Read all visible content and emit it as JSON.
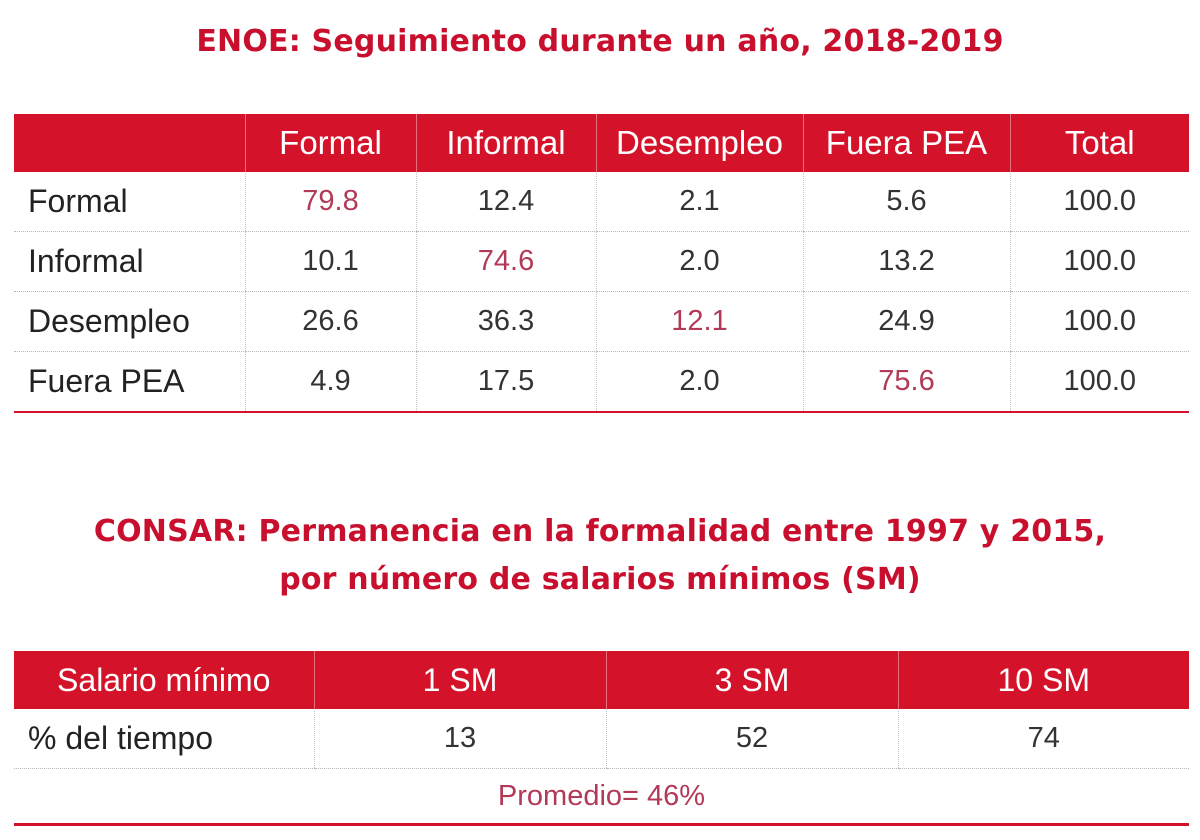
{
  "enoe": {
    "title": "ENOE: Seguimiento durante un año, 2018-2019",
    "headers": [
      "",
      "Formal",
      "Informal",
      "Desempleo",
      "Fuera PEA",
      "Total"
    ],
    "rows": [
      {
        "label": "Formal",
        "values": [
          "79.8",
          "12.4",
          "2.1",
          "5.6",
          "100.0"
        ]
      },
      {
        "label": "Informal",
        "values": [
          "10.1",
          "74.6",
          "2.0",
          "13.2",
          "100.0"
        ]
      },
      {
        "label": "Desempleo",
        "values": [
          "26.6",
          "36.3",
          "12.1",
          "24.9",
          "100.0"
        ]
      },
      {
        "label": "Fuera PEA",
        "values": [
          "4.9",
          "17.5",
          "2.0",
          "75.6",
          "100.0"
        ]
      }
    ]
  },
  "consar": {
    "title_line1": "CONSAR: Permanencia en la formalidad entre 1997 y 2015,",
    "title_line2": "por número de salarios mínimos (SM)",
    "headers": [
      "Salario mínimo",
      "1 SM",
      "3 SM",
      "10 SM"
    ],
    "row": {
      "label": "% del tiempo",
      "values": [
        "13",
        "52",
        "74"
      ]
    },
    "average": "Promedio= 46%"
  },
  "colors": {
    "accent": "#d4132a",
    "title": "#c8102e",
    "highlight": "#b23a57"
  }
}
